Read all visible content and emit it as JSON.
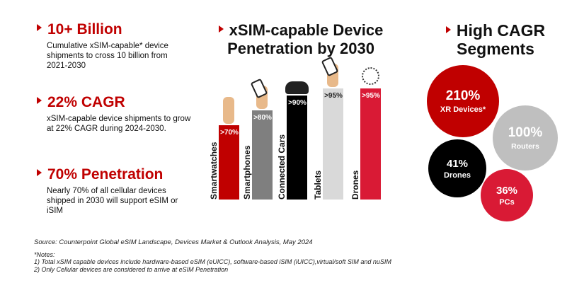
{
  "stats": [
    {
      "title": "10+ Billion",
      "body": "Cumulative xSIM-capable* device shipments to cross 10 billion from 2021-2030"
    },
    {
      "title": "22% CAGR",
      "body": "xSIM-capable device shipments to grow at 22% CAGR during 2024-2030."
    },
    {
      "title": "70% Penetration",
      "body": "Nearly 70% of all cellular devices shipped in 2030 will support eSIM or iSIM"
    }
  ],
  "chart_data": [
    {
      "type": "bar",
      "title": "xSIM-capable Device Penetration by 2030",
      "categories": [
        "Smartwatches",
        "Smartphones",
        "Connected Cars",
        "Tablets",
        "Drones"
      ],
      "values": [
        70,
        80,
        90,
        95,
        95
      ],
      "labels": [
        ">70%",
        ">80%",
        ">90%",
        ">95%",
        ">95%"
      ],
      "colors": [
        "#c00000",
        "#7f7f7f",
        "#000000",
        "#d9d9d9",
        "#d91a35"
      ],
      "label_colors": [
        "#ffffff",
        "#ffffff",
        "#ffffff",
        "#222222",
        "#ffffff"
      ],
      "ylim": [
        0,
        100
      ]
    },
    {
      "type": "bubble",
      "title": "High CAGR Segments",
      "categories": [
        "XR Devices*",
        "Routers",
        "Drones",
        "PCs"
      ],
      "values": [
        210,
        100,
        41,
        36
      ],
      "labels": [
        "210%",
        "100%",
        "41%",
        "36%"
      ],
      "colors": [
        "#c00000",
        "#bfbfbf",
        "#000000",
        "#d91a35"
      ]
    }
  ],
  "footer": {
    "source": "Source: Counterpoint Global eSIM Landscape, Devices Market & Outlook Analysis, May 2024",
    "notes_title": "*Notes:",
    "note1": " 1) Total xSIM capable devices include hardware-based eSIM (eUICC), software-based iSIM (iUICC),virtual/soft SIM and nuSIM",
    "note2": "2) Only Cellular devices are considered to arrive at eSIM Penetration"
  }
}
